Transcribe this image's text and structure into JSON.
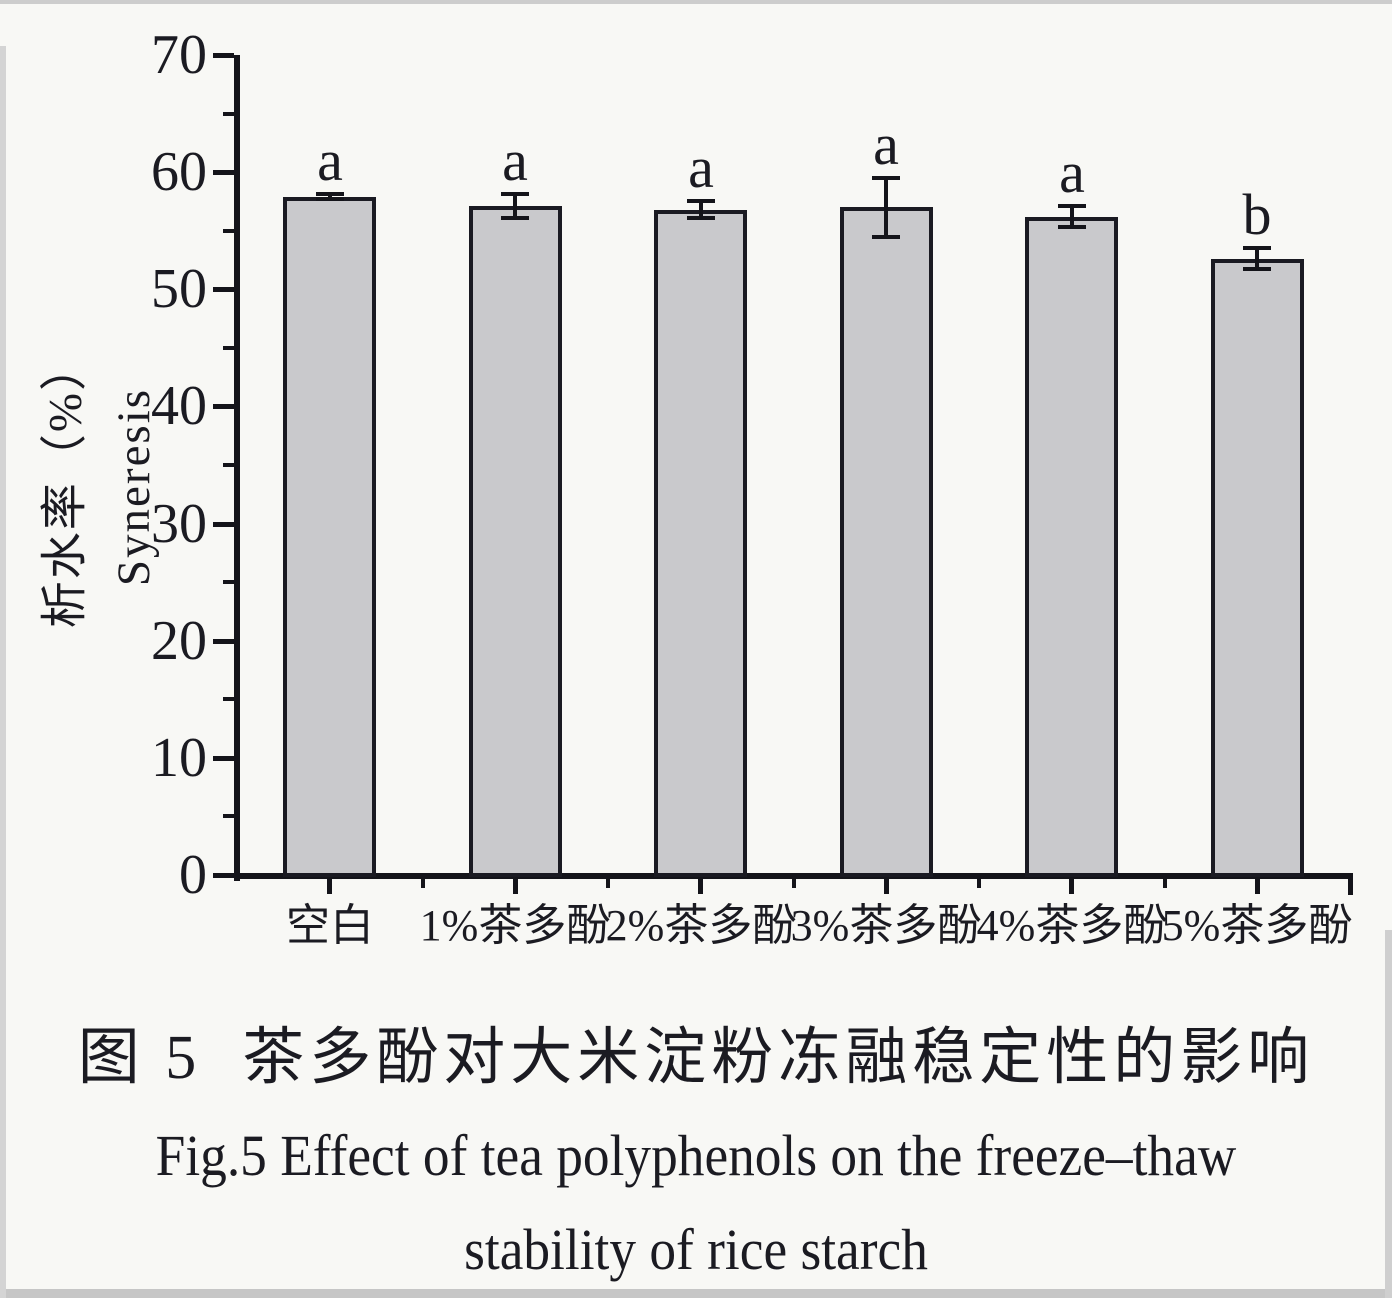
{
  "figure": {
    "title_cn": "图 5  茶多酚对大米淀粉冻融稳定性的影响",
    "caption_en_line1": "Fig.5 Effect of tea polyphenols on the freeze–thaw",
    "caption_en_line2": "stability of rice starch"
  },
  "chart_data": {
    "type": "bar",
    "categories": [
      "空白",
      "1%茶多酚",
      "2%茶多酚",
      "3%茶多酚",
      "4%茶多酚",
      "5%茶多酚"
    ],
    "values": [
      57.9,
      57.1,
      56.8,
      57.0,
      56.2,
      52.6
    ],
    "errors": [
      0.2,
      1.0,
      0.7,
      2.5,
      0.9,
      0.9
    ],
    "sig_letters": [
      "a",
      "a",
      "a",
      "a",
      "a",
      "b"
    ],
    "ylabel_cn": "析水率（%）",
    "ylabel_en": "Syneresis",
    "xlabel": "",
    "title": "",
    "ylim": [
      0,
      70
    ],
    "yticks": [
      0,
      10,
      20,
      30,
      40,
      50,
      60,
      70
    ],
    "ytick_step": 10,
    "ytick_minor_step": 5,
    "grid": false,
    "legend": null,
    "colors": {
      "bar_fill": "#c9c9cc",
      "bar_border": "#1a1a22",
      "axis": "#14141a",
      "text": "#1b1b22",
      "background": "#f8f8f5"
    }
  }
}
